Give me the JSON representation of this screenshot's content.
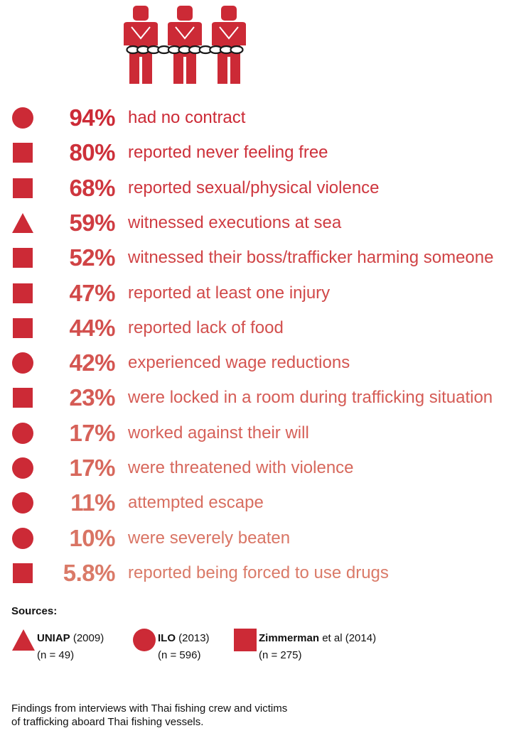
{
  "colors": {
    "accent": "#cc2a36",
    "text": "#111111"
  },
  "icons": {
    "hero": "three-chained-people-icon"
  },
  "chart_data": {
    "type": "table",
    "rows": [
      {
        "value": 94,
        "pct": "94%",
        "label": "had no contract",
        "source": "ILO",
        "marker": "circle"
      },
      {
        "value": 80,
        "pct": "80%",
        "label": "reported never feeling free",
        "source": "Zimmerman",
        "marker": "square"
      },
      {
        "value": 68,
        "pct": "68%",
        "label": "reported sexual/physical violence",
        "source": "Zimmerman",
        "marker": "square"
      },
      {
        "value": 59,
        "pct": "59%",
        "label": "witnessed executions at sea",
        "source": "UNIAP",
        "marker": "triangle"
      },
      {
        "value": 52,
        "pct": "52%",
        "label": "witnessed their boss/trafficker harming someone",
        "source": "Zimmerman",
        "marker": "square"
      },
      {
        "value": 47,
        "pct": "47%",
        "label": "reported at least one injury",
        "source": "Zimmerman",
        "marker": "square"
      },
      {
        "value": 44,
        "pct": "44%",
        "label": "reported lack of food",
        "source": "Zimmerman",
        "marker": "square"
      },
      {
        "value": 42,
        "pct": "42%",
        "label": "experienced wage reductions",
        "source": "ILO",
        "marker": "circle"
      },
      {
        "value": 23,
        "pct": "23%",
        "label": "were locked in a room during trafficking situation",
        "source": "Zimmerman",
        "marker": "square"
      },
      {
        "value": 17,
        "pct": "17%",
        "label": "worked against their will",
        "source": "ILO",
        "marker": "circle"
      },
      {
        "value": 17,
        "pct": "17%",
        "label": "were threatened with violence",
        "source": "ILO",
        "marker": "circle"
      },
      {
        "value": 11,
        "pct": "11%",
        "label": "attempted escape",
        "source": "ILO",
        "marker": "circle"
      },
      {
        "value": 10,
        "pct": "10%",
        "label": "were severely beaten",
        "source": "ILO",
        "marker": "circle"
      },
      {
        "value": 5.8,
        "pct": "5.8%",
        "label": "reported being forced to use drugs",
        "source": "Zimmerman",
        "marker": "square"
      }
    ]
  },
  "sources": {
    "title": "Sources:",
    "items": [
      {
        "marker": "triangle",
        "name_bold": "UNIAP",
        "name_rest": " (2009)",
        "n": "(n = 49)"
      },
      {
        "marker": "circle",
        "name_bold": "ILO",
        "name_rest": " (2013)",
        "n": "(n = 596)"
      },
      {
        "marker": "square",
        "name_bold": "Zimmerman",
        "name_rest": " et al (2014)",
        "n": "(n = 275)"
      }
    ]
  },
  "footnote": {
    "line1": "Findings from interviews with Thai fishing crew and victims",
    "line2": "of trafficking aboard Thai fishing vessels."
  }
}
